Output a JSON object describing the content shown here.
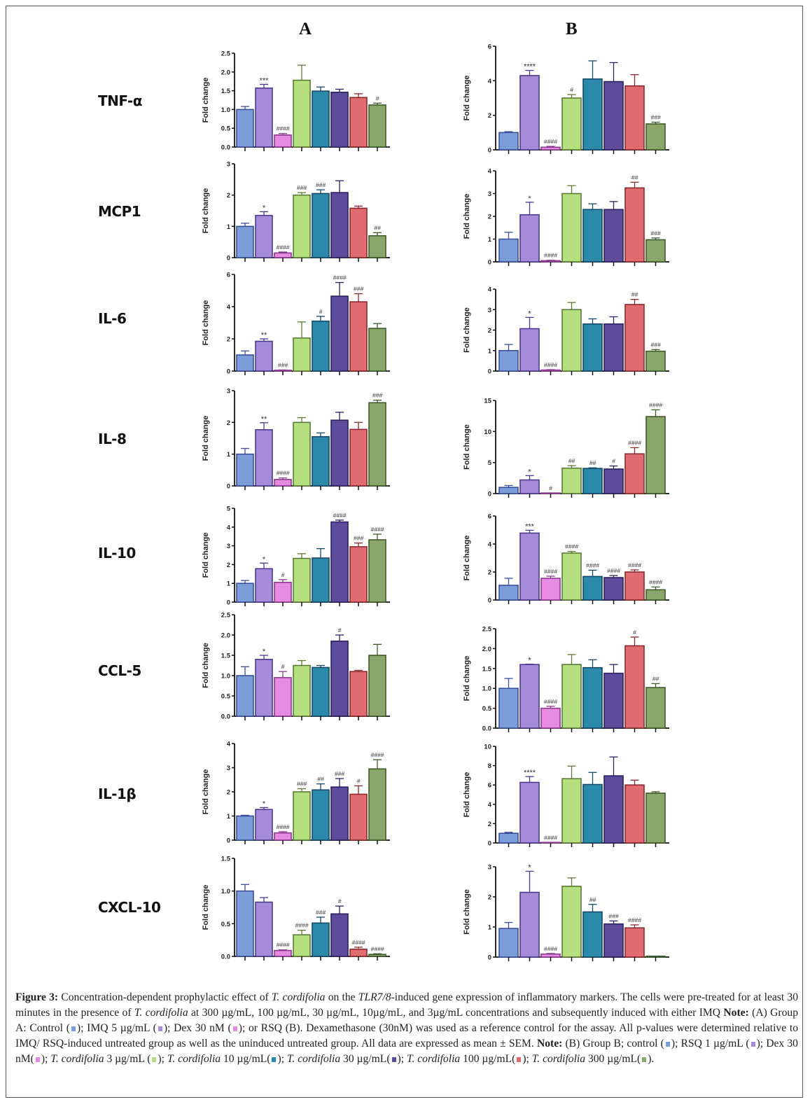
{
  "panels": {
    "a": "A",
    "b": "B"
  },
  "colors": [
    "#7b9ed9",
    "#a58bd8",
    "#e68ae2",
    "#b6df80",
    "#2b8aa9",
    "#5d4b9b",
    "#e06b70",
    "#8aa66b"
  ],
  "borders": [
    "#3b4f9a",
    "#4b3a8e",
    "#8b3a8e",
    "#5b7a36",
    "#164a6a",
    "#2c2260",
    "#8a2a30",
    "#3f5a2a"
  ],
  "chart_data": [
    {
      "type": "bar",
      "gene": "TNF-α",
      "panel": "A",
      "ylabel": "Fold change",
      "ylim": [
        0,
        2.5
      ],
      "yticks": [
        "0.0",
        "0.5",
        "1.0",
        "1.5",
        "2.0",
        "2.5"
      ],
      "values": [
        1.0,
        1.57,
        0.32,
        1.78,
        1.49,
        1.46,
        1.32,
        1.12
      ],
      "errors": [
        0.08,
        0.1,
        0.04,
        0.4,
        0.11,
        0.08,
        0.1,
        0.05
      ],
      "annotations": [
        "",
        "***",
        "####",
        "",
        "",
        "",
        "",
        "#"
      ]
    },
    {
      "type": "bar",
      "gene": "TNF-α",
      "panel": "B",
      "ylabel": "Fold change",
      "ylim": [
        0,
        6
      ],
      "yticks": [
        "0",
        "2",
        "4",
        "6"
      ],
      "values": [
        1.0,
        4.3,
        0.15,
        3.0,
        4.1,
        3.95,
        3.7,
        1.5
      ],
      "errors": [
        0.05,
        0.3,
        0.05,
        0.2,
        1.05,
        1.1,
        0.65,
        0.1
      ],
      "annotations": [
        "",
        "****",
        "####",
        "#",
        "",
        "",
        "",
        "###"
      ]
    },
    {
      "type": "bar",
      "gene": "MCP1",
      "panel": "A",
      "ylabel": "Fold change",
      "ylim": [
        0,
        3
      ],
      "yticks": [
        "0",
        "1",
        "2",
        "3"
      ],
      "values": [
        1.0,
        1.35,
        0.15,
        2.0,
        2.05,
        2.08,
        1.58,
        0.7
      ],
      "errors": [
        0.1,
        0.12,
        0.03,
        0.08,
        0.12,
        0.38,
        0.07,
        0.1
      ],
      "annotations": [
        "",
        "*",
        "####",
        "###",
        "###",
        "",
        "",
        "##"
      ]
    },
    {
      "type": "bar",
      "gene": "MCP1",
      "panel": "B",
      "ylabel": "Fold change",
      "ylim": [
        0,
        4
      ],
      "yticks": [
        "0",
        "1",
        "2",
        "3",
        "4"
      ],
      "values": [
        1.0,
        2.07,
        0.05,
        3.0,
        2.3,
        2.3,
        3.25,
        0.97
      ],
      "errors": [
        0.3,
        0.55,
        0.02,
        0.35,
        0.25,
        0.35,
        0.25,
        0.08
      ],
      "annotations": [
        "",
        "*",
        "####",
        "",
        "",
        "",
        "##",
        "###"
      ]
    },
    {
      "type": "bar",
      "gene": "IL-6",
      "panel": "A",
      "ylabel": "Fold change",
      "ylim": [
        0,
        6
      ],
      "yticks": [
        "0",
        "2",
        "4",
        "6"
      ],
      "values": [
        1.0,
        1.85,
        0.05,
        2.05,
        3.1,
        4.65,
        4.3,
        2.65
      ],
      "errors": [
        0.25,
        0.15,
        0.02,
        1.0,
        0.3,
        0.85,
        0.5,
        0.3
      ],
      "annotations": [
        "",
        "**",
        "###",
        "",
        "#",
        "####",
        "###",
        ""
      ]
    },
    {
      "type": "bar",
      "gene": "IL-6",
      "panel": "B",
      "ylabel": "Fold change",
      "ylim": [
        0,
        4
      ],
      "yticks": [
        "0",
        "1",
        "2",
        "3",
        "4"
      ],
      "values": [
        1.0,
        2.07,
        0.05,
        3.0,
        2.3,
        2.3,
        3.25,
        0.97
      ],
      "errors": [
        0.3,
        0.55,
        0.02,
        0.35,
        0.25,
        0.35,
        0.25,
        0.08
      ],
      "annotations": [
        "",
        "*",
        "####",
        "",
        "",
        "",
        "##",
        "###"
      ]
    },
    {
      "type": "bar",
      "gene": "IL-8",
      "panel": "A",
      "ylabel": "Fold change",
      "ylim": [
        0,
        3
      ],
      "yticks": [
        "0",
        "1",
        "2",
        "3"
      ],
      "values": [
        1.0,
        1.77,
        0.2,
        2.0,
        1.55,
        2.07,
        1.78,
        2.62
      ],
      "errors": [
        0.18,
        0.22,
        0.05,
        0.15,
        0.12,
        0.25,
        0.22,
        0.08
      ],
      "annotations": [
        "",
        "**",
        "####",
        "",
        "",
        "",
        "",
        "###"
      ]
    },
    {
      "type": "bar",
      "gene": "IL-8",
      "panel": "B",
      "ylabel": "Fold change",
      "ylim": [
        0,
        15
      ],
      "yticks": [
        "0",
        "5",
        "10",
        "15"
      ],
      "values": [
        1.0,
        2.2,
        0.1,
        4.1,
        4.05,
        3.95,
        6.4,
        12.4
      ],
      "errors": [
        0.3,
        0.7,
        0.0,
        0.4,
        0.1,
        0.5,
        1.0,
        1.1
      ],
      "annotations": [
        "",
        "*",
        "#",
        "##",
        "##",
        "#",
        "####",
        "####"
      ]
    },
    {
      "type": "bar",
      "gene": "IL-10",
      "panel": "A",
      "ylabel": "Fold change",
      "ylim": [
        0,
        5
      ],
      "yticks": [
        "0",
        "1",
        "2",
        "3",
        "4",
        "5"
      ],
      "values": [
        1.0,
        1.78,
        1.05,
        2.33,
        2.35,
        4.27,
        2.95,
        3.32
      ],
      "errors": [
        0.15,
        0.3,
        0.15,
        0.25,
        0.5,
        0.1,
        0.2,
        0.3
      ],
      "annotations": [
        "",
        "*",
        "#",
        "",
        "",
        "####",
        "###",
        "####"
      ]
    },
    {
      "type": "bar",
      "gene": "IL-10",
      "panel": "B",
      "ylabel": "Fold change",
      "ylim": [
        0,
        6
      ],
      "yticks": [
        "0",
        "2",
        "4",
        "6"
      ],
      "values": [
        1.05,
        4.78,
        1.55,
        3.35,
        1.68,
        1.6,
        2.0,
        0.73
      ],
      "errors": [
        0.5,
        0.2,
        0.15,
        0.12,
        0.45,
        0.15,
        0.15,
        0.2
      ],
      "annotations": [
        "",
        "***",
        "####",
        "####",
        "####",
        "####",
        "####",
        "####"
      ]
    },
    {
      "type": "bar",
      "gene": "CCL-5",
      "panel": "A",
      "ylabel": "Fold change",
      "ylim": [
        0,
        2.5
      ],
      "yticks": [
        "0.0",
        "0.5",
        "1.0",
        "1.5",
        "2.0",
        "2.5"
      ],
      "values": [
        1.0,
        1.4,
        0.95,
        1.25,
        1.2,
        1.85,
        1.1,
        1.5
      ],
      "errors": [
        0.22,
        0.1,
        0.15,
        0.12,
        0.05,
        0.15,
        0.03,
        0.27
      ],
      "annotations": [
        "",
        "*",
        "#",
        "",
        "",
        "#",
        "",
        ""
      ]
    },
    {
      "type": "bar",
      "gene": "CCL-5",
      "panel": "B",
      "ylabel": "Fold change",
      "ylim": [
        0,
        2.5
      ],
      "yticks": [
        "0.0",
        "0.5",
        "1.0",
        "1.5",
        "2.0",
        "2.5"
      ],
      "values": [
        1.0,
        1.6,
        0.5,
        1.6,
        1.52,
        1.38,
        2.07,
        1.02
      ],
      "errors": [
        0.25,
        0.01,
        0.05,
        0.25,
        0.2,
        0.22,
        0.22,
        0.1
      ],
      "annotations": [
        "",
        "*",
        "####",
        "",
        "",
        "",
        "#",
        "##"
      ]
    },
    {
      "type": "bar",
      "gene": "IL-1β",
      "panel": "A",
      "ylabel": "Fold change",
      "ylim": [
        0,
        4
      ],
      "yticks": [
        "0",
        "1",
        "2",
        "3",
        "4"
      ],
      "values": [
        1.0,
        1.27,
        0.3,
        2.0,
        2.08,
        2.2,
        1.9,
        2.95
      ],
      "errors": [
        0.03,
        0.08,
        0.05,
        0.13,
        0.25,
        0.35,
        0.35,
        0.38
      ],
      "annotations": [
        "",
        "*",
        "####",
        "###",
        "##",
        "###",
        "#",
        "####"
      ]
    },
    {
      "type": "bar",
      "gene": "IL-1β",
      "panel": "B",
      "ylabel": "Fold change",
      "ylim": [
        0,
        10
      ],
      "yticks": [
        "0",
        "2",
        "4",
        "6",
        "8",
        "10"
      ],
      "values": [
        1.0,
        6.27,
        0.05,
        6.65,
        6.05,
        6.95,
        6.0,
        5.15
      ],
      "errors": [
        0.1,
        0.6,
        0.0,
        1.3,
        1.25,
        1.95,
        0.5,
        0.15
      ],
      "annotations": [
        "",
        "****",
        "####",
        "",
        "",
        "",
        "",
        ""
      ]
    },
    {
      "type": "bar",
      "gene": "CXCL-10",
      "panel": "A",
      "ylabel": "Fold change",
      "ylim": [
        0,
        1.5
      ],
      "yticks": [
        "0.0",
        "0.5",
        "1.0",
        "1.5"
      ],
      "values": [
        1.0,
        0.83,
        0.09,
        0.33,
        0.51,
        0.65,
        0.11,
        0.03
      ],
      "errors": [
        0.1,
        0.07,
        0.01,
        0.07,
        0.09,
        0.12,
        0.03,
        0.01
      ],
      "annotations": [
        "",
        "",
        "####",
        "####",
        "###",
        "#",
        "####",
        "####"
      ]
    },
    {
      "type": "bar",
      "gene": "CXCL-10",
      "panel": "B",
      "ylabel": "Fold change",
      "ylim": [
        0,
        3
      ],
      "yticks": [
        "0",
        "1",
        "2",
        "3"
      ],
      "values": [
        0.95,
        2.15,
        0.1,
        2.35,
        1.5,
        1.1,
        0.97,
        0.03
      ],
      "errors": [
        0.2,
        0.7,
        0.02,
        0.28,
        0.25,
        0.1,
        0.1,
        0.0
      ],
      "annotations": [
        "",
        "*",
        "####",
        "",
        "##",
        "###",
        "####",
        ""
      ]
    }
  ],
  "caption": [
    {
      "t": "Figure 3:",
      "s": "b"
    },
    {
      "t": " Concentration-dependent prophylactic effect of ",
      "s": ""
    },
    {
      "t": "T. cordifolia",
      "s": "i"
    },
    {
      "t": " on the ",
      "s": ""
    },
    {
      "t": "TLR7/8",
      "s": "i"
    },
    {
      "t": "-induced gene expression of inflammatory markers. The cells were pre-treated for at least 30 minutes in the presence of ",
      "s": ""
    },
    {
      "t": "T. cordifolia",
      "s": "i"
    },
    {
      "t": " at 300 µg/mL, 100 µg/mL, 30 µg/mL, 10µg/mL, and 3µg/mL concentrations and subsequently induced with either IMQ  ",
      "s": ""
    },
    {
      "t": "Note:",
      "s": "b"
    },
    {
      "t": " (A) Group A: Control (",
      "s": ""
    },
    {
      "sq": 0
    },
    {
      "t": "); IMQ 5 µg/mL (",
      "s": ""
    },
    {
      "sq": 1
    },
    {
      "t": "); Dex 30 nM (",
      "s": ""
    },
    {
      "sq": 2
    },
    {
      "t": "); or RSQ  (B). Dexamethasone (30nM) was used as a reference control for the assay. All p-values were determined relative to IMQ/ RSQ-induced untreated group as well as the uninduced untreated group. All data are expressed as mean ± SEM. ",
      "s": ""
    },
    {
      "t": "Note:",
      "s": "b"
    },
    {
      "t": " (B) Group B; control (",
      "s": ""
    },
    {
      "sq": 0
    },
    {
      "t": "); RSQ 1 µg/mL (",
      "s": ""
    },
    {
      "sq": 1
    },
    {
      "t": "); Dex 30 nM(",
      "s": ""
    },
    {
      "sq": 2
    },
    {
      "t": "); ",
      "s": ""
    },
    {
      "t": "T. cordifolia",
      "s": "i"
    },
    {
      "t": " 3 µg/mL (",
      "s": ""
    },
    {
      "sq": 3
    },
    {
      "t": "); ",
      "s": ""
    },
    {
      "t": "T. cordifolia",
      "s": "i"
    },
    {
      "t": " 10 µg/mL(",
      "s": ""
    },
    {
      "sq": 4
    },
    {
      "t": "); ",
      "s": ""
    },
    {
      "t": "T. cordifolia",
      "s": "i"
    },
    {
      "t": " 30 µg/mL(",
      "s": ""
    },
    {
      "sq": 5
    },
    {
      "t": "); ",
      "s": ""
    },
    {
      "t": "T. cordifolia",
      "s": "i"
    },
    {
      "t": " 100 µg/mL(",
      "s": ""
    },
    {
      "sq": 6
    },
    {
      "t": "); ",
      "s": ""
    },
    {
      "t": "T. cordifolia",
      "s": "i"
    },
    {
      "t": " 300 µg/mL(",
      "s": ""
    },
    {
      "sq": 7
    },
    {
      "t": ").",
      "s": ""
    }
  ]
}
